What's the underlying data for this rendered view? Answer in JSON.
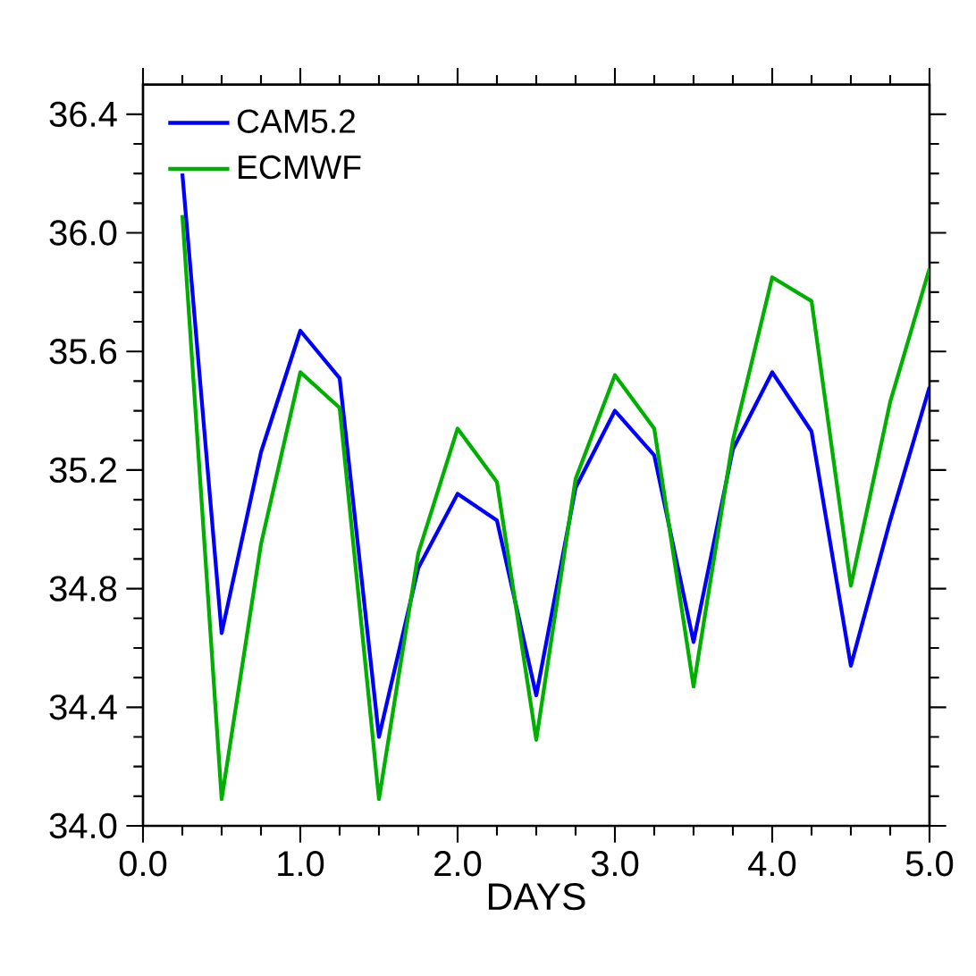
{
  "chart_data": {
    "type": "line",
    "xlabel": "DAYS",
    "x": [
      0.25,
      0.5,
      0.75,
      1.0,
      1.25,
      1.5,
      1.75,
      2.0,
      2.25,
      2.5,
      2.75,
      3.0,
      3.25,
      3.5,
      3.75,
      4.0,
      4.25,
      4.5,
      4.75,
      5.0
    ],
    "series": [
      {
        "name": "CAM5.2",
        "color": "#0000ff",
        "values": [
          36.2,
          34.65,
          35.26,
          35.67,
          35.51,
          34.3,
          34.87,
          35.12,
          35.03,
          34.44,
          35.14,
          35.4,
          35.25,
          34.62,
          35.27,
          35.53,
          35.33,
          34.54,
          35.03,
          35.48
        ]
      },
      {
        "name": "ECMWF",
        "color": "#00b000",
        "values": [
          36.06,
          34.09,
          34.95,
          35.53,
          35.41,
          34.09,
          34.92,
          35.34,
          35.16,
          34.29,
          35.17,
          35.52,
          35.34,
          34.47,
          35.3,
          35.85,
          35.77,
          34.81,
          35.43,
          35.88
        ]
      }
    ],
    "xlim": [
      0,
      5
    ],
    "ylim": [
      34.0,
      36.5
    ],
    "xticks": [
      {
        "value": 0,
        "label": "0.0"
      },
      {
        "value": 1,
        "label": "1.0"
      },
      {
        "value": 2,
        "label": "2.0"
      },
      {
        "value": 3,
        "label": "3.0"
      },
      {
        "value": 4,
        "label": "4.0"
      },
      {
        "value": 5,
        "label": "5.0"
      }
    ],
    "yticks": [
      {
        "value": 34.0,
        "label": "34.0"
      },
      {
        "value": 34.4,
        "label": "34.4"
      },
      {
        "value": 34.8,
        "label": "34.8"
      },
      {
        "value": 35.2,
        "label": "35.2"
      },
      {
        "value": 35.6,
        "label": "35.6"
      },
      {
        "value": 36.0,
        "label": "36.0"
      },
      {
        "value": 36.4,
        "label": "36.4"
      }
    ],
    "legend": "top left",
    "grid": false,
    "marker": "none",
    "line_style": "solid"
  }
}
